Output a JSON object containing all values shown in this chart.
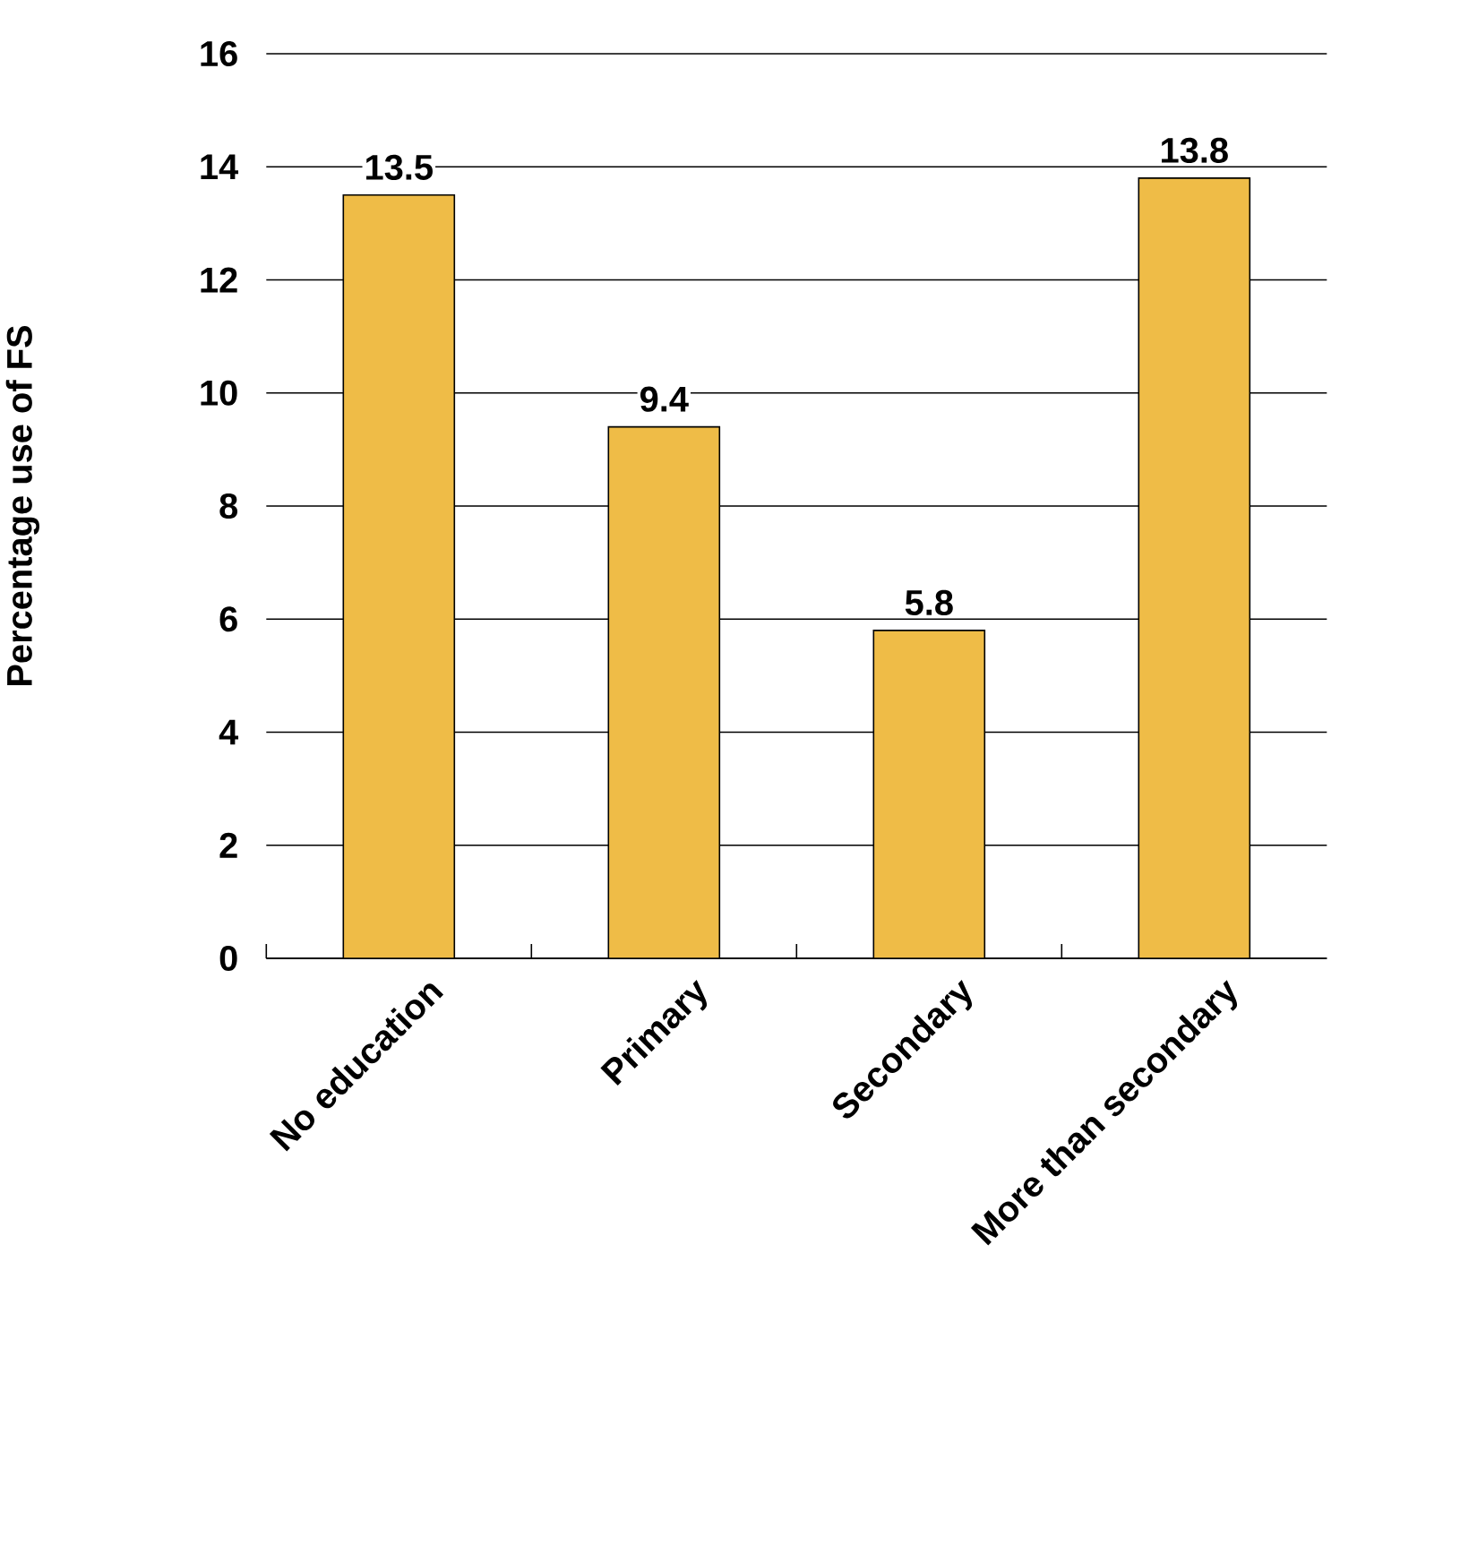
{
  "chart_data": {
    "type": "bar",
    "ylabel": "Percentage use of FS",
    "categories": [
      "No education",
      "Primary",
      "Secondary",
      "More than secondary"
    ],
    "values": [
      13.5,
      9.4,
      5.8,
      13.8
    ],
    "color": "#efbc47",
    "ylim": [
      0,
      16
    ],
    "yticks": [
      0,
      2,
      4,
      6,
      8,
      10,
      12,
      14,
      16
    ],
    "grid": "y",
    "data_labels": true
  }
}
